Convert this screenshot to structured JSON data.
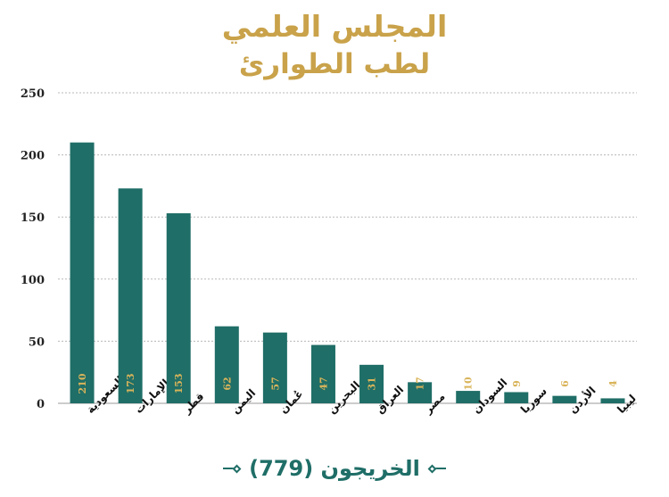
{
  "title": {
    "line1": "المجلس العلمي",
    "line2": "لطب الطوارئ"
  },
  "footer": {
    "text": "الخريجون (779)"
  },
  "colors": {
    "bar": "#1f6e67",
    "title": "#c9a24a",
    "data_label": "#d9b45a",
    "grid": "#b8b8b8"
  },
  "chart_data": {
    "type": "bar",
    "categories": [
      "السعودية",
      "الإمارات",
      "قطر",
      "اليمن",
      "عُمان",
      "البحرين",
      "العراق",
      "مصر",
      "السودان",
      "سوريا",
      "الأردن",
      "ليبيا"
    ],
    "values": [
      210,
      173,
      153,
      62,
      57,
      47,
      31,
      17,
      10,
      9,
      6,
      4
    ],
    "ylim": [
      0,
      250
    ],
    "yticks": [
      0,
      50,
      100,
      150,
      200,
      250
    ],
    "grid": true,
    "legend": "none",
    "data_labels": true
  }
}
